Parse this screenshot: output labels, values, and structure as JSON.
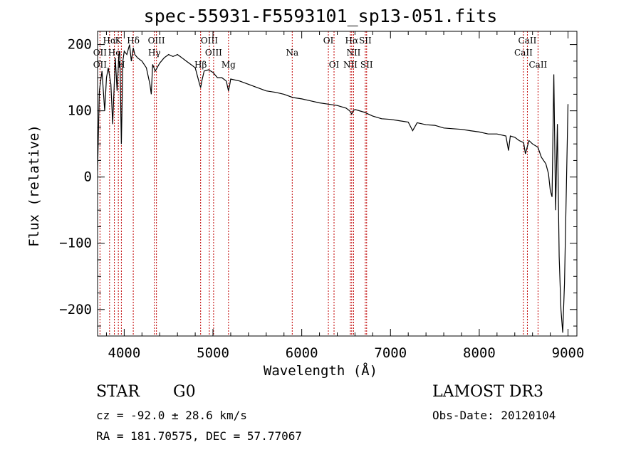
{
  "chart_data": {
    "type": "line",
    "title": "spec-55931-F5593101_sp13-051.fits",
    "xlabel": "Wavelength (Å)",
    "ylabel": "Flux (relative)",
    "xlim": [
      3700,
      9100
    ],
    "ylim": [
      -240,
      220
    ],
    "xticks": [
      4000,
      5000,
      6000,
      7000,
      8000,
      9000
    ],
    "yticks": [
      -200,
      -100,
      0,
      100,
      200
    ],
    "series": [
      {
        "name": "flux",
        "x": [
          3700,
          3720,
          3750,
          3780,
          3800,
          3820,
          3850,
          3870,
          3900,
          3920,
          3940,
          3950,
          3968,
          3985,
          4000,
          4030,
          4060,
          4080,
          4102,
          4120,
          4150,
          4200,
          4250,
          4290,
          4305,
          4320,
          4350,
          4400,
          4450,
          4500,
          4550,
          4600,
          4650,
          4700,
          4750,
          4800,
          4850,
          4861,
          4875,
          4900,
          4950,
          5000,
          5050,
          5100,
          5150,
          5175,
          5190,
          5200,
          5300,
          5400,
          5500,
          5600,
          5700,
          5800,
          5900,
          6000,
          6100,
          6200,
          6300,
          6400,
          6500,
          6540,
          6563,
          6580,
          6600,
          6700,
          6800,
          6900,
          7000,
          7100,
          7200,
          7250,
          7300,
          7400,
          7500,
          7600,
          7700,
          7800,
          7900,
          8000,
          8100,
          8200,
          8300,
          8330,
          8350,
          8400,
          8450,
          8500,
          8520,
          8560,
          8600,
          8660,
          8700,
          8750,
          8780,
          8800,
          8820,
          8840,
          8860,
          8880,
          8900,
          8920,
          8940,
          8960,
          9000
        ],
        "y": [
          10,
          130,
          160,
          100,
          150,
          165,
          140,
          80,
          180,
          130,
          185,
          190,
          50,
          175,
          190,
          185,
          200,
          175,
          195,
          185,
          180,
          175,
          165,
          140,
          125,
          170,
          160,
          172,
          180,
          185,
          182,
          185,
          180,
          175,
          170,
          165,
          140,
          135,
          145,
          160,
          162,
          158,
          150,
          150,
          145,
          130,
          140,
          148,
          145,
          140,
          135,
          130,
          128,
          125,
          120,
          118,
          115,
          112,
          110,
          108,
          104,
          100,
          95,
          100,
          102,
          98,
          92,
          88,
          87,
          85,
          83,
          70,
          82,
          79,
          78,
          74,
          73,
          72,
          70,
          68,
          65,
          65,
          62,
          40,
          62,
          60,
          55,
          52,
          35,
          55,
          50,
          45,
          30,
          20,
          5,
          -20,
          -30,
          155,
          -50,
          80,
          -120,
          -200,
          -235,
          -160,
          110
        ]
      }
    ],
    "lines_top": [
      {
        "label": "Hα",
        "w": 3835
      },
      {
        "label": "K",
        "w": 3934
      },
      {
        "label": "Hδ",
        "w": 4102
      },
      {
        "label": "OIII",
        "w": 4363
      },
      {
        "label": "OIII",
        "w": 4959
      },
      {
        "label": "OI",
        "w": 6300
      },
      {
        "label": "Hα",
        "w": 6563
      },
      {
        "label": "SII",
        "w": 6716
      },
      {
        "label": "CaII",
        "w": 8542
      }
    ],
    "lines_mid": [
      {
        "label": "OII",
        "w": 3727
      },
      {
        "label": "He",
        "w": 3889
      },
      {
        "label": "Hγ",
        "w": 4340
      },
      {
        "label": "OIII",
        "w": 5007
      },
      {
        "label": "Na",
        "w": 5893
      },
      {
        "label": "NII",
        "w": 6584
      },
      {
        "label": "CaII",
        "w": 8498
      }
    ],
    "lines_low": [
      {
        "label": "OII",
        "w": 3727
      },
      {
        "label": "H",
        "w": 3968
      },
      {
        "label": "Hβ",
        "w": 4861
      },
      {
        "label": "Mg",
        "w": 5175
      },
      {
        "label": "OI",
        "w": 6364
      },
      {
        "label": "NII",
        "w": 6548
      },
      {
        "label": "SII",
        "w": 6731
      },
      {
        "label": "CaII",
        "w": 8662
      }
    ]
  },
  "info": {
    "class": "STAR",
    "subclass": "G0",
    "survey": "LAMOST DR3",
    "cz": "cz = -92.0 ± 28.6 km/s",
    "obs_date": "Obs-Date: 20120104",
    "radec": "RA = 181.70575, DEC =  57.77067"
  }
}
